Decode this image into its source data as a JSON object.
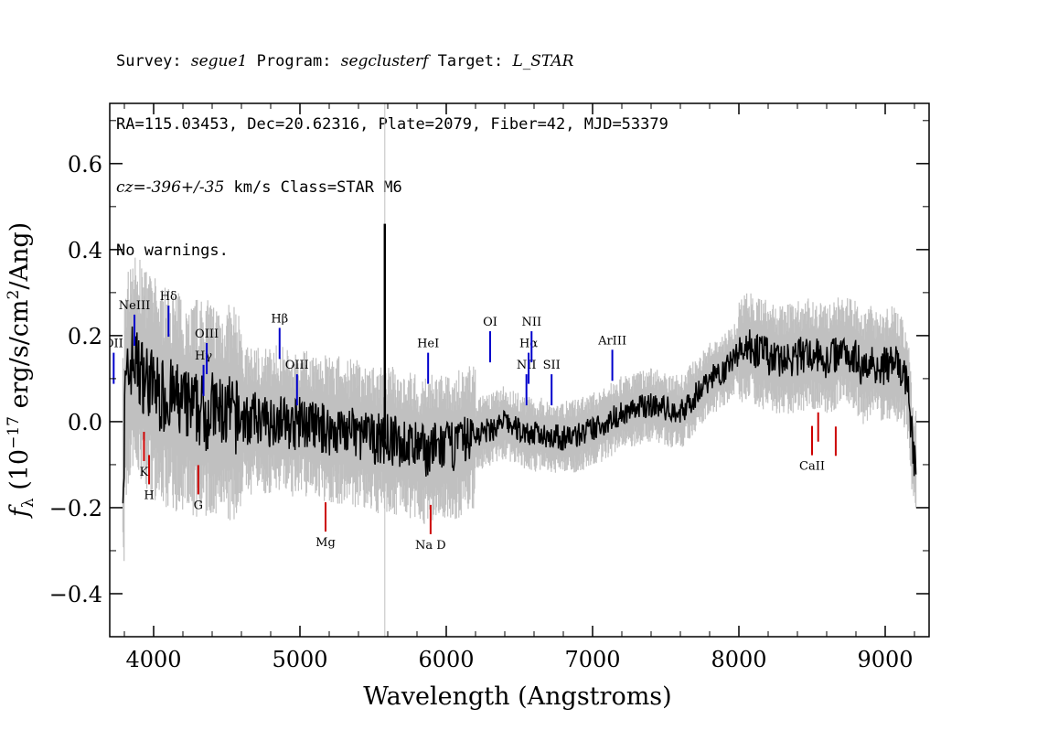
{
  "header": {
    "line1_a": "Survey: ",
    "survey": "segue1",
    "line1_b": " Program: ",
    "program": "segclusterf",
    "line1_c": " Target: ",
    "target": "L_STAR",
    "line2": "RA=115.03453, Dec=20.62316, Plate=2079, Fiber=42, MJD=53379",
    "cz": "cz=-396+/-35",
    "line3_b": " km/s Class=STAR M6",
    "line4": "No warnings."
  },
  "chart_data": {
    "type": "line",
    "xlabel": "Wavelength (Angstroms)",
    "ylabel": "f_λ (10^-17 erg/s/cm²/Ang)",
    "xlim": [
      3700,
      9300
    ],
    "ylim": [
      -0.5,
      0.74
    ],
    "x_ticks": [
      4000,
      5000,
      6000,
      7000,
      8000,
      9000
    ],
    "x_tick_labels": [
      "4000",
      "5000",
      "6000",
      "7000",
      "8000",
      "9000"
    ],
    "y_ticks": [
      -0.4,
      -0.2,
      0.0,
      0.2,
      0.4,
      0.6
    ],
    "y_tick_labels": [
      "−0.4",
      "−0.2",
      "0.0",
      "0.2",
      "0.4",
      "0.6"
    ],
    "grid": false,
    "colors": {
      "spectrum": "#000000",
      "error": "#c0c0c0",
      "emission": "#0000cc",
      "absorption": "#cc0000"
    },
    "series": [
      {
        "values_description_key": "spectrum",
        "x": [
          3800,
          3850,
          3900,
          3950,
          4000,
          4050,
          4100,
          4150,
          4200,
          4250,
          4300,
          4350,
          4400,
          4450,
          4500,
          4550,
          4600,
          4650,
          4700,
          4750,
          4800,
          4850,
          4900,
          4950,
          5000,
          5100,
          5200,
          5300,
          5400,
          5500,
          5580,
          5600,
          5700,
          5800,
          5880,
          5900,
          6000,
          6100,
          6200,
          6300,
          6400,
          6500,
          6600,
          6700,
          6800,
          6900,
          7000,
          7100,
          7200,
          7300,
          7400,
          7500,
          7600,
          7700,
          7800,
          7900,
          8000,
          8050,
          8100,
          8200,
          8300,
          8400,
          8500,
          8600,
          8700,
          8800,
          8850,
          8900,
          8950,
          9000,
          9050,
          9100,
          9150,
          9200
        ],
        "y": [
          0.05,
          0.15,
          0.12,
          0.1,
          0.08,
          0.06,
          0.06,
          0.05,
          0.04,
          0.03,
          0.03,
          0.02,
          0.03,
          0.02,
          0.02,
          0.01,
          0.01,
          0.0,
          0.01,
          0.0,
          0.0,
          0.01,
          0.0,
          -0.01,
          0.0,
          -0.01,
          -0.02,
          -0.02,
          -0.03,
          -0.04,
          0.46,
          -0.04,
          -0.05,
          -0.06,
          -0.07,
          -0.06,
          -0.06,
          -0.05,
          -0.03,
          -0.02,
          0.0,
          -0.02,
          -0.03,
          -0.03,
          -0.04,
          -0.03,
          -0.02,
          0.0,
          0.02,
          0.03,
          0.04,
          0.03,
          0.02,
          0.06,
          0.1,
          0.12,
          0.16,
          0.18,
          0.17,
          0.15,
          0.14,
          0.15,
          0.16,
          0.14,
          0.17,
          0.15,
          0.12,
          0.14,
          0.13,
          0.13,
          0.14,
          0.12,
          0.1,
          -0.1
        ]
      }
    ],
    "emission_lines": [
      {
        "label": "NeIII",
        "wavelength": 3869
      },
      {
        "label": "OII",
        "wavelength": 3727
      },
      {
        "label": "Hδ",
        "wavelength": 4102
      },
      {
        "label": "Hγ",
        "wavelength": 4341
      },
      {
        "label": "OIII",
        "wavelength": 4363
      },
      {
        "label": "Hβ",
        "wavelength": 4861
      },
      {
        "label": "OIII",
        "wavelength": 4980
      },
      {
        "label": "HeI",
        "wavelength": 5876
      },
      {
        "label": "OI",
        "wavelength": 6300
      },
      {
        "label": "NII",
        "wavelength": 6548
      },
      {
        "label": "Hα",
        "wavelength": 6563
      },
      {
        "label": "NII",
        "wavelength": 6583
      },
      {
        "label": "SII",
        "wavelength": 6720
      },
      {
        "label": "ArIII",
        "wavelength": 7135
      }
    ],
    "absorption_lines": [
      {
        "label": "K",
        "wavelength": 3934
      },
      {
        "label": "H",
        "wavelength": 3969
      },
      {
        "label": "G",
        "wavelength": 4305
      },
      {
        "label": "Mg",
        "wavelength": 5175
      },
      {
        "label": "Na D",
        "wavelength": 5893
      },
      {
        "label": "CaII",
        "wavelength": 8500
      },
      {
        "label": "",
        "wavelength": 8542
      },
      {
        "label": "",
        "wavelength": 8662
      }
    ]
  }
}
